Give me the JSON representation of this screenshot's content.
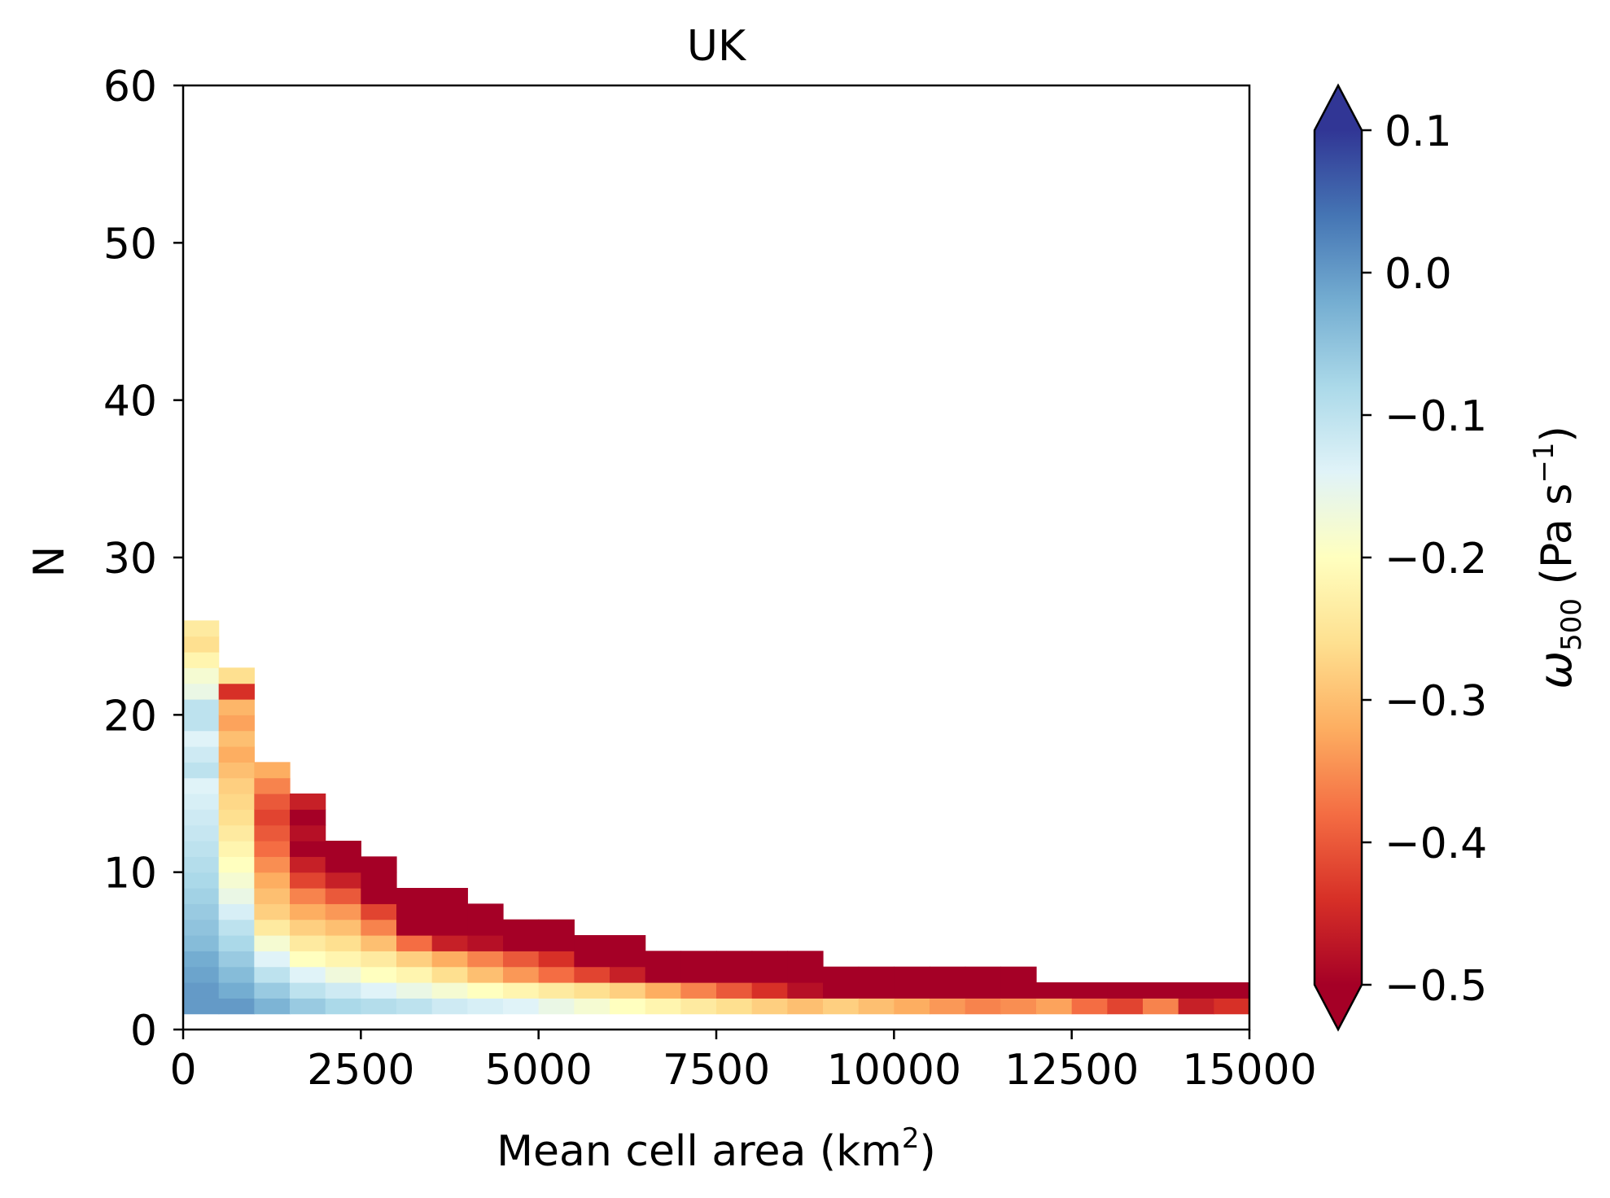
{
  "chart_data": {
    "type": "heatmap",
    "title": "UK",
    "xlabel_main": "Mean cell area (km",
    "xlabel_sup": "2",
    "xlabel_end": ")",
    "ylabel": "N",
    "xlim": [
      0,
      15000
    ],
    "ylim": [
      0,
      60
    ],
    "x_bin_width": 500,
    "y_bin_height": 1,
    "xticks": [
      0,
      2500,
      5000,
      7500,
      10000,
      12500,
      15000
    ],
    "xtick_labels": [
      "0",
      "2500",
      "5000",
      "7500",
      "10000",
      "12500",
      "15000"
    ],
    "yticks": [
      0,
      10,
      20,
      30,
      40,
      50,
      60
    ],
    "ytick_labels": [
      "0",
      "10",
      "20",
      "30",
      "40",
      "50",
      "60"
    ],
    "grid": false,
    "colormap": "RdYlBu",
    "colorbar": {
      "label_symbol": "ω",
      "label_sub": "500",
      "label_units_main": "(Pa s",
      "label_units_sup": "−1",
      "label_units_end": ")",
      "vmin": -0.5,
      "vmax": 0.1,
      "extend": "both",
      "ticks": [
        -0.5,
        -0.4,
        -0.3,
        -0.2,
        -0.1,
        0.0,
        0.1
      ],
      "tick_labels": [
        "−0.5",
        "−0.4",
        "−0.3",
        "−0.2",
        "−0.1",
        "0.0",
        "0.1"
      ],
      "stops": [
        "#a50026",
        "#d73027",
        "#f46d43",
        "#fdae61",
        "#fee090",
        "#ffffbf",
        "#e0f3f8",
        "#abd9e9",
        "#74add1",
        "#4575b4",
        "#313695"
      ]
    },
    "columns": [
      {
        "x0": 0,
        "y0": 1,
        "values": [
          0.0,
          0.0,
          -0.01,
          -0.02,
          -0.04,
          -0.05,
          -0.06,
          -0.07,
          -0.08,
          -0.09,
          -0.1,
          -0.11,
          -0.12,
          -0.13,
          -0.14,
          -0.1,
          -0.12,
          -0.14,
          -0.1,
          -0.1,
          -0.16,
          -0.18,
          -0.22,
          -0.26,
          -0.24
        ]
      },
      {
        "x0": 500,
        "y0": 1,
        "values": [
          0.0,
          -0.02,
          -0.04,
          -0.06,
          -0.08,
          -0.1,
          -0.13,
          -0.16,
          -0.18,
          -0.2,
          -0.22,
          -0.24,
          -0.26,
          -0.27,
          -0.28,
          -0.3,
          -0.32,
          -0.3,
          -0.33,
          -0.31,
          -0.44,
          -0.26
        ]
      },
      {
        "x0": 1000,
        "y0": 1,
        "values": [
          -0.03,
          -0.06,
          -0.1,
          -0.14,
          -0.18,
          -0.24,
          -0.28,
          -0.3,
          -0.32,
          -0.35,
          -0.38,
          -0.4,
          -0.42,
          -0.4,
          -0.36,
          -0.32
        ]
      },
      {
        "x0": 1500,
        "y0": 1,
        "values": [
          -0.06,
          -0.1,
          -0.14,
          -0.2,
          -0.24,
          -0.28,
          -0.32,
          -0.36,
          -0.42,
          -0.46,
          -0.5,
          -0.48,
          -0.5,
          -0.46
        ]
      },
      {
        "x0": 2000,
        "y0": 1,
        "values": [
          -0.08,
          -0.12,
          -0.17,
          -0.22,
          -0.26,
          -0.3,
          -0.34,
          -0.4,
          -0.46,
          -0.5,
          -0.5
        ]
      },
      {
        "x0": 2500,
        "y0": 1,
        "values": [
          -0.09,
          -0.14,
          -0.2,
          -0.24,
          -0.3,
          -0.36,
          -0.42,
          -0.5,
          -0.5,
          -0.5
        ]
      },
      {
        "x0": 3000,
        "y0": 1,
        "values": [
          -0.1,
          -0.16,
          -0.22,
          -0.28,
          -0.38,
          -0.5,
          -0.5,
          -0.5
        ]
      },
      {
        "x0": 3500,
        "y0": 1,
        "values": [
          -0.12,
          -0.18,
          -0.26,
          -0.32,
          -0.46,
          -0.5,
          -0.5,
          -0.5
        ]
      },
      {
        "x0": 4000,
        "y0": 1,
        "values": [
          -0.13,
          -0.2,
          -0.3,
          -0.36,
          -0.48,
          -0.5,
          -0.5
        ]
      },
      {
        "x0": 4500,
        "y0": 1,
        "values": [
          -0.14,
          -0.22,
          -0.34,
          -0.4,
          -0.5,
          -0.5
        ]
      },
      {
        "x0": 5000,
        "y0": 1,
        "values": [
          -0.16,
          -0.24,
          -0.38,
          -0.44,
          -0.5,
          -0.5
        ]
      },
      {
        "x0": 5500,
        "y0": 1,
        "values": [
          -0.18,
          -0.26,
          -0.42,
          -0.5,
          -0.5
        ]
      },
      {
        "x0": 6000,
        "y0": 1,
        "values": [
          -0.2,
          -0.28,
          -0.46,
          -0.5,
          -0.5
        ]
      },
      {
        "x0": 6500,
        "y0": 1,
        "values": [
          -0.22,
          -0.32,
          -0.5,
          -0.5
        ]
      },
      {
        "x0": 7000,
        "y0": 1,
        "values": [
          -0.24,
          -0.36,
          -0.5,
          -0.5
        ]
      },
      {
        "x0": 7500,
        "y0": 1,
        "values": [
          -0.26,
          -0.4,
          -0.5,
          -0.5
        ]
      },
      {
        "x0": 8000,
        "y0": 1,
        "values": [
          -0.28,
          -0.44,
          -0.5,
          -0.5
        ]
      },
      {
        "x0": 8500,
        "y0": 1,
        "values": [
          -0.3,
          -0.48,
          -0.5,
          -0.5
        ]
      },
      {
        "x0": 9000,
        "y0": 1,
        "values": [
          -0.28,
          -0.5,
          -0.5
        ]
      },
      {
        "x0": 9500,
        "y0": 1,
        "values": [
          -0.3,
          -0.5,
          -0.5
        ]
      },
      {
        "x0": 10000,
        "y0": 1,
        "values": [
          -0.32,
          -0.5,
          -0.5
        ]
      },
      {
        "x0": 10500,
        "y0": 1,
        "values": [
          -0.34,
          -0.5,
          -0.5
        ]
      },
      {
        "x0": 11000,
        "y0": 1,
        "values": [
          -0.36,
          -0.5,
          -0.5
        ]
      },
      {
        "x0": 11500,
        "y0": 1,
        "values": [
          -0.35,
          -0.5,
          -0.5
        ]
      },
      {
        "x0": 12000,
        "y0": 1,
        "values": [
          -0.33,
          -0.5
        ]
      },
      {
        "x0": 12500,
        "y0": 1,
        "values": [
          -0.38,
          -0.5
        ]
      },
      {
        "x0": 13000,
        "y0": 1,
        "values": [
          -0.42,
          -0.5
        ]
      },
      {
        "x0": 13500,
        "y0": 1,
        "values": [
          -0.36,
          -0.5
        ]
      },
      {
        "x0": 14000,
        "y0": 1,
        "values": [
          -0.46,
          -0.5
        ]
      },
      {
        "x0": 14500,
        "y0": 1,
        "values": [
          -0.44,
          -0.5
        ]
      }
    ]
  }
}
